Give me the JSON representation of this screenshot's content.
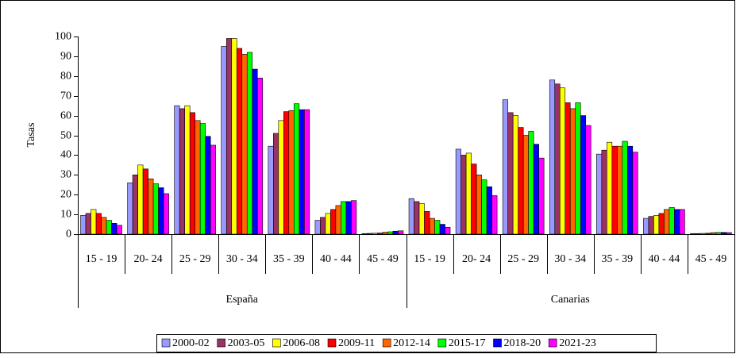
{
  "chart_data": {
    "type": "bar",
    "y_label": "Tasas",
    "groups": [
      {
        "name": "España",
        "categories": [
          "15 - 19",
          "20- 24",
          "25 - 29",
          "30 - 34",
          "35 - 39",
          "40 - 44",
          "45 - 49"
        ]
      },
      {
        "name": "Canarias",
        "categories": [
          "15 - 19",
          "20- 24",
          "25 - 29",
          "30 - 34",
          "35 - 39",
          "40 - 44",
          "45 - 49"
        ]
      }
    ],
    "series": [
      {
        "name": "2000-02",
        "color": "#9999ff",
        "values": [
          9.5,
          26,
          65,
          95,
          44.5,
          7,
          0.3,
          18,
          43,
          68,
          78,
          40.5,
          8,
          0.3
        ]
      },
      {
        "name": "2003-05",
        "color": "#993366",
        "values": [
          10.5,
          30,
          63.5,
          99,
          51,
          8.5,
          0.4,
          16.5,
          40,
          61.5,
          76,
          42.5,
          9,
          0.3
        ]
      },
      {
        "name": "2006-08",
        "color": "#ffff00",
        "values": [
          12.5,
          35,
          65,
          99,
          57.5,
          10.5,
          0.5,
          15.5,
          41,
          60,
          74,
          46.5,
          9.5,
          0.4
        ]
      },
      {
        "name": "2009-11",
        "color": "#ff0000",
        "values": [
          10.5,
          33,
          61.5,
          94,
          62,
          12.5,
          0.6,
          11.5,
          35.5,
          54,
          66.5,
          44.5,
          10.5,
          0.5
        ]
      },
      {
        "name": "2012-14",
        "color": "#ff6600",
        "values": [
          8.5,
          28,
          57.5,
          91,
          62.5,
          14.5,
          1,
          8,
          30,
          50,
          63.5,
          44.5,
          12.5,
          0.8
        ]
      },
      {
        "name": "2015-17",
        "color": "#00ff00",
        "values": [
          7,
          25.5,
          56,
          92,
          66,
          16.5,
          1.2,
          7,
          27.5,
          52,
          66.5,
          47,
          13.5,
          0.9
        ]
      },
      {
        "name": "2018-20",
        "color": "#0000ff",
        "values": [
          5.5,
          23.5,
          49.5,
          83.5,
          63,
          16.5,
          1.5,
          5,
          24,
          45.5,
          60,
          44.5,
          12.5,
          0.9
        ]
      },
      {
        "name": "2021-23",
        "color": "#ff00ff",
        "values": [
          4.5,
          20.5,
          45,
          79,
          63,
          17,
          1.7,
          3.5,
          19.5,
          38.5,
          55,
          41.5,
          12.5,
          0.8
        ]
      }
    ],
    "ylim": [
      0,
      100
    ],
    "yticks": [
      0,
      10,
      20,
      30,
      40,
      50,
      60,
      70,
      80,
      90,
      100
    ]
  }
}
